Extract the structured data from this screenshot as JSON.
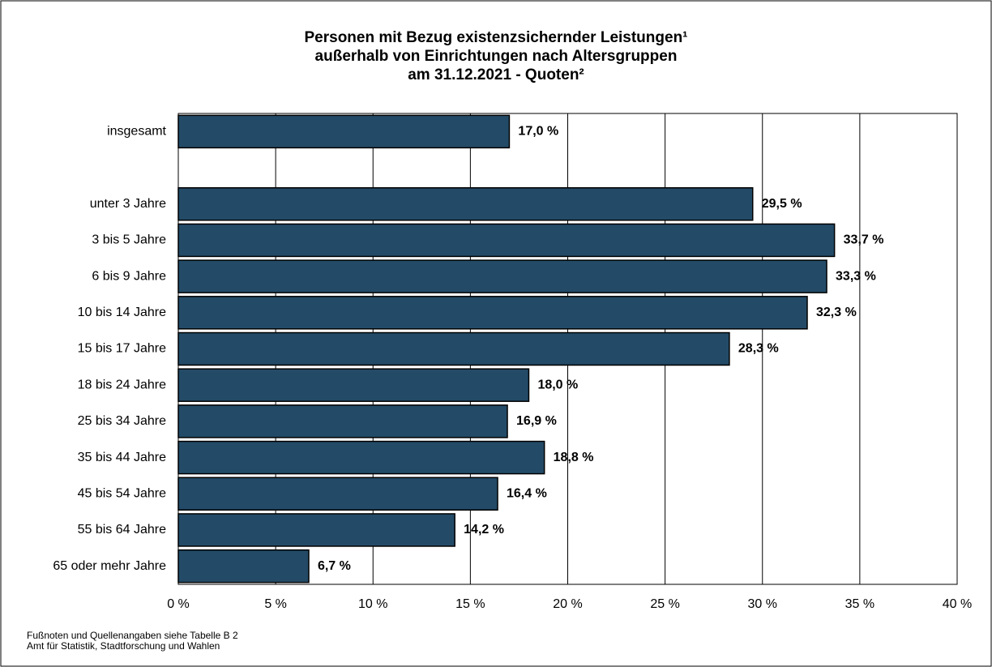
{
  "chart_data": {
    "type": "bar",
    "orientation": "horizontal",
    "title": [
      "Personen mit Bezug existenzsichernder Leistungen¹",
      "außerhalb von Einrichtungen nach Altersgruppen",
      "am 31.12.2021 - Quoten²"
    ],
    "categories": [
      "insgesamt",
      null,
      "unter 3 Jahre",
      "3 bis 5 Jahre",
      "6 bis 9 Jahre",
      "10 bis 14 Jahre",
      "15 bis 17 Jahre",
      "18 bis 24 Jahre",
      "25 bis 34 Jahre",
      "35 bis 44 Jahre",
      "45 bis 54 Jahre",
      "55 bis 64 Jahre",
      "65 oder mehr Jahre"
    ],
    "values": [
      17.0,
      null,
      29.5,
      33.7,
      33.3,
      32.3,
      28.3,
      18.0,
      16.9,
      18.8,
      16.4,
      14.2,
      6.7
    ],
    "value_labels": [
      "17,0 %",
      null,
      "29,5 %",
      "33,7 %",
      "33,3 %",
      "32,3 %",
      "28,3 %",
      "18,0 %",
      "16,9 %",
      "18,8 %",
      "16,4 %",
      "14,2 %",
      "6,7 %"
    ],
    "color": "#234b67",
    "xlim": [
      0,
      40
    ],
    "xticks": [
      {
        "value": 0,
        "label": "0 %"
      },
      {
        "value": 5,
        "label": "5 %"
      },
      {
        "value": 10,
        "label": "10 %"
      },
      {
        "value": 15,
        "label": "15 %"
      },
      {
        "value": 20,
        "label": "20 %"
      },
      {
        "value": 25,
        "label": "25 %"
      },
      {
        "value": 30,
        "label": "30 %"
      },
      {
        "value": 35,
        "label": "35 %"
      },
      {
        "value": 40,
        "label": "40 %"
      }
    ],
    "grid": true,
    "notes": [
      "Fußnoten und Quellenangaben siehe Tabelle B 2",
      "Amt für Statistik, Stadtforschung und Wahlen"
    ]
  }
}
